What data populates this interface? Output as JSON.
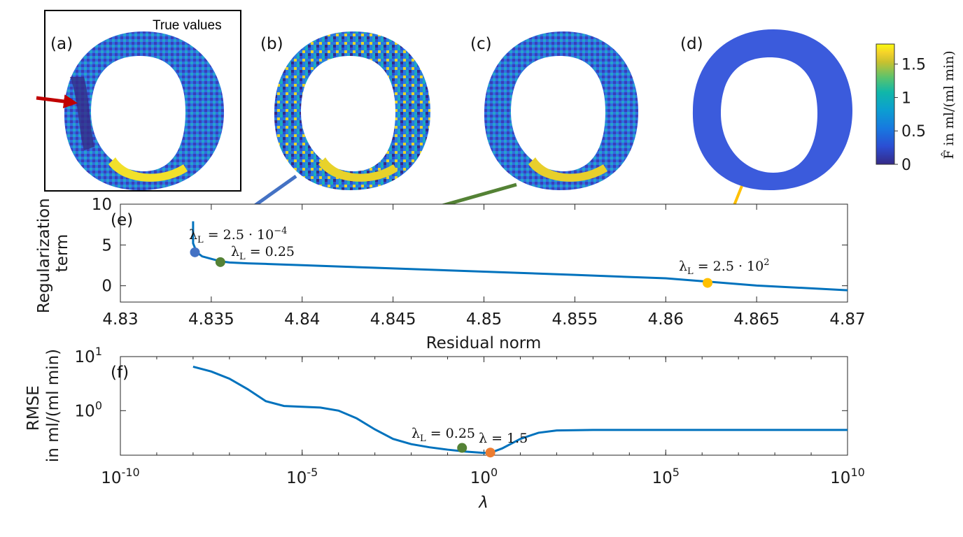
{
  "figure": {
    "panel_labels": [
      "(a)",
      "(b)",
      "(c)",
      "(d)",
      "(e)",
      "(f)"
    ],
    "true_values_label": "True values"
  },
  "colorbar": {
    "ticks": [
      "0",
      "0.5",
      "1",
      "1.5"
    ],
    "label": "F̂ in ml/(ml min)",
    "range": [
      0,
      1.8
    ]
  },
  "chart_data": [
    {
      "type": "line",
      "panel": "(e)",
      "xlabel": "Residual norm",
      "ylabel": "Regularization term",
      "xlim": [
        4.83,
        4.87
      ],
      "ylim": [
        -2,
        10
      ],
      "xticks": [
        "4.83",
        "4.835",
        "4.84",
        "4.845",
        "4.85",
        "4.855",
        "4.86",
        "4.865",
        "4.87"
      ],
      "yticks": [
        "0",
        "5",
        "10"
      ],
      "curve": [
        [
          4.834,
          7.9
        ],
        [
          4.834,
          5.2
        ],
        [
          4.8342,
          4.1
        ],
        [
          4.8345,
          3.6
        ],
        [
          4.835,
          3.3
        ],
        [
          4.8355,
          3.0
        ],
        [
          4.836,
          2.85
        ],
        [
          4.837,
          2.75
        ],
        [
          4.838,
          2.68
        ],
        [
          4.839,
          2.6
        ],
        [
          4.84,
          2.52
        ],
        [
          4.842,
          2.36
        ],
        [
          4.845,
          2.13
        ],
        [
          4.85,
          1.73
        ],
        [
          4.855,
          1.33
        ],
        [
          4.86,
          0.91
        ],
        [
          4.865,
          0.03
        ],
        [
          4.87,
          -0.55
        ]
      ],
      "markers": [
        {
          "x": 4.8341,
          "y": 4.1,
          "color": "#4472c4",
          "label": "λ_L = 2.5·10^-4"
        },
        {
          "x": 4.8355,
          "y": 2.9,
          "color": "#548235",
          "label": "λ_L = 0.25"
        },
        {
          "x": 4.8623,
          "y": 0.35,
          "color": "#ffc000",
          "label": "λ_L = 2.5·10^2"
        }
      ],
      "annotations": {
        "m1_base": "λ",
        "m1_sub": "L",
        "m1_eq": " = 2.5 · 10",
        "m1_sup": "−4",
        "m2_base": "λ",
        "m2_sub": "L",
        "m2_eq": " = 0.25",
        "m3_base": "λ",
        "m3_sub": "L",
        "m3_eq": " = 2.5 · 10",
        "m3_sup": "2"
      }
    },
    {
      "type": "line",
      "panel": "(f)",
      "xlabel": "λ",
      "ylabel_line1": "RMSE",
      "ylabel_line2": "in ml/(ml min)",
      "xscale": "log",
      "yscale": "log",
      "xlim": [
        1e-10,
        10000000000.0
      ],
      "ylim": [
        0.15,
        10
      ],
      "xtick_base": "10",
      "xtick_exps": [
        "-10",
        "-5",
        "0",
        "5",
        "10"
      ],
      "ytick_base": "10",
      "ytick_exps": [
        "1",
        "0"
      ],
      "curve": [
        [
          -8,
          6.5
        ],
        [
          -7.5,
          5.3
        ],
        [
          -7,
          3.9
        ],
        [
          -6.5,
          2.5
        ],
        [
          -6,
          1.5
        ],
        [
          -5.5,
          1.22
        ],
        [
          -5,
          1.18
        ],
        [
          -4.5,
          1.14
        ],
        [
          -4,
          1.0
        ],
        [
          -3.5,
          0.72
        ],
        [
          -3,
          0.45
        ],
        [
          -2.5,
          0.3
        ],
        [
          -2,
          0.24
        ],
        [
          -1.5,
          0.21
        ],
        [
          -1,
          0.19
        ],
        [
          -0.5,
          0.175
        ],
        [
          0,
          0.165
        ],
        [
          0.2,
          0.168
        ],
        [
          0.5,
          0.2
        ],
        [
          1,
          0.3
        ],
        [
          1.5,
          0.39
        ],
        [
          2,
          0.43
        ],
        [
          3,
          0.44
        ],
        [
          5,
          0.44
        ],
        [
          8,
          0.44
        ],
        [
          10,
          0.44
        ]
      ],
      "markers": [
        {
          "x": 0.25,
          "y": 0.205,
          "color": "#548235",
          "label": "λ_L = 0.25"
        },
        {
          "x": 1.5,
          "y": 0.168,
          "color": "#ed7d31",
          "label": "λ = 1.5"
        }
      ],
      "annotations": {
        "m1_base": "λ",
        "m1_sub": "L",
        "m1_eq": " = 0.25",
        "m2_text": "λ = 1.5"
      }
    }
  ],
  "colors": {
    "line": "#0072bd",
    "arrow_red": "#c00000",
    "arrow_blue": "#4472c4",
    "arrow_green": "#548235",
    "arrow_yellow": "#ffc000"
  }
}
